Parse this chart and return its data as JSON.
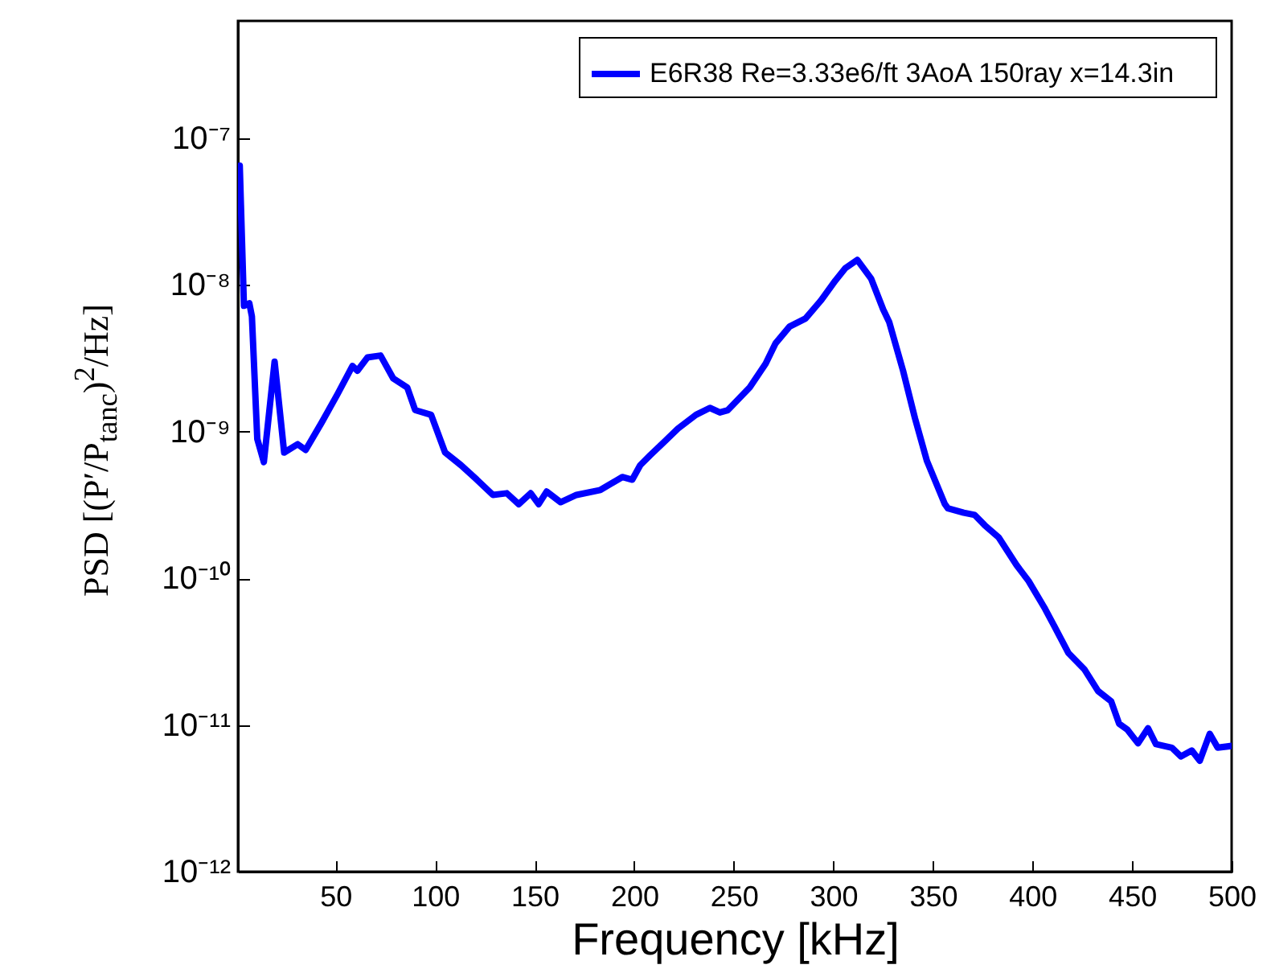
{
  "chart_data": {
    "type": "line",
    "xlabel": "Frequency [kHz]",
    "ylabel": "PSD [(P′/P$_{tanc}$)$^{2}$/Hz]",
    "log": "y",
    "xlim": [
      1,
      500
    ],
    "xticks": [
      50,
      100,
      150,
      200,
      250,
      300,
      350,
      400,
      450,
      500
    ],
    "ylim": [
      1e-12,
      6.3e-07
    ],
    "yticks": [
      {
        "value": 1e-12,
        "label": "10⁻¹²"
      },
      {
        "value": 1e-11,
        "label": "10⁻¹¹"
      },
      {
        "value": 1e-10,
        "label": "10⁻¹⁰"
      },
      {
        "value": 1e-09,
        "label": "10⁻⁹"
      },
      {
        "value": 1e-08,
        "label": "10⁻⁸"
      },
      {
        "value": 1e-07,
        "label": "10⁻⁷"
      }
    ],
    "grid": false,
    "legend": "top right",
    "marker": "none",
    "line_style": "solid",
    "series": [
      {
        "name": "E6R38  Re=3.33e6/ft  3AoA  150ray  x=14.3in",
        "color": "#0000ff",
        "x": [
          1.9,
          4,
          6.7,
          8,
          10.7,
          14,
          19.4,
          24.2,
          31,
          35,
          43,
          51,
          58.5,
          61,
          66,
          72.6,
          79,
          86,
          90,
          98,
          105,
          113,
          121,
          129,
          136,
          142,
          148,
          152,
          156,
          163,
          171,
          183,
          194,
          199,
          203,
          208,
          215,
          222,
          231,
          238,
          243,
          247,
          258,
          266,
          271,
          278,
          286,
          294,
          301,
          306,
          312,
          319,
          325,
          328,
          335,
          341,
          347,
          356,
          357.5,
          365.5,
          371,
          376,
          383,
          392,
          398,
          406,
          411,
          418,
          426,
          433,
          439.5,
          443.5,
          447.6,
          453,
          458,
          462,
          470,
          474.5,
          480,
          484,
          489,
          493,
          500
        ],
        "values": [
          6.5e-08,
          7.2e-09,
          7.5e-09,
          6.1e-09,
          8.9e-10,
          6.2e-10,
          3e-09,
          7.2e-10,
          8.2e-10,
          7.5e-10,
          1.15e-09,
          1.8e-09,
          2.8e-09,
          2.6e-09,
          3.2e-09,
          3.3e-09,
          2.3e-09,
          2e-09,
          1.4e-09,
          1.3e-09,
          7.2e-10,
          5.9e-10,
          4.7e-10,
          3.7e-10,
          3.8e-10,
          3.2e-10,
          3.8e-10,
          3.2e-10,
          3.9e-10,
          3.3e-10,
          3.7e-10,
          4e-10,
          4.9e-10,
          4.7e-10,
          5.9e-10,
          6.9e-10,
          8.5e-10,
          1.05e-09,
          1.3e-09,
          1.45e-09,
          1.35e-09,
          1.4e-09,
          2e-09,
          2.9e-09,
          4e-09,
          5.2e-09,
          5.9e-09,
          7.9e-09,
          1.07e-08,
          1.3e-08,
          1.48e-08,
          1.1e-08,
          6.8e-09,
          5.6e-09,
          2.6e-09,
          1.23e-09,
          6.3e-10,
          3.2e-10,
          3e-10,
          2.8e-10,
          2.7e-10,
          2.3e-10,
          1.9e-10,
          1.23e-10,
          9.6e-11,
          6.3e-11,
          4.7e-11,
          3.1e-11,
          2.4e-11,
          1.7e-11,
          1.45e-11,
          1.02e-11,
          9.3e-12,
          7.5e-12,
          9.5e-12,
          7.4e-12,
          7e-12,
          6.1e-12,
          6.7e-12,
          5.7e-12,
          8.7e-12,
          7e-12,
          7.2e-12
        ]
      }
    ]
  }
}
